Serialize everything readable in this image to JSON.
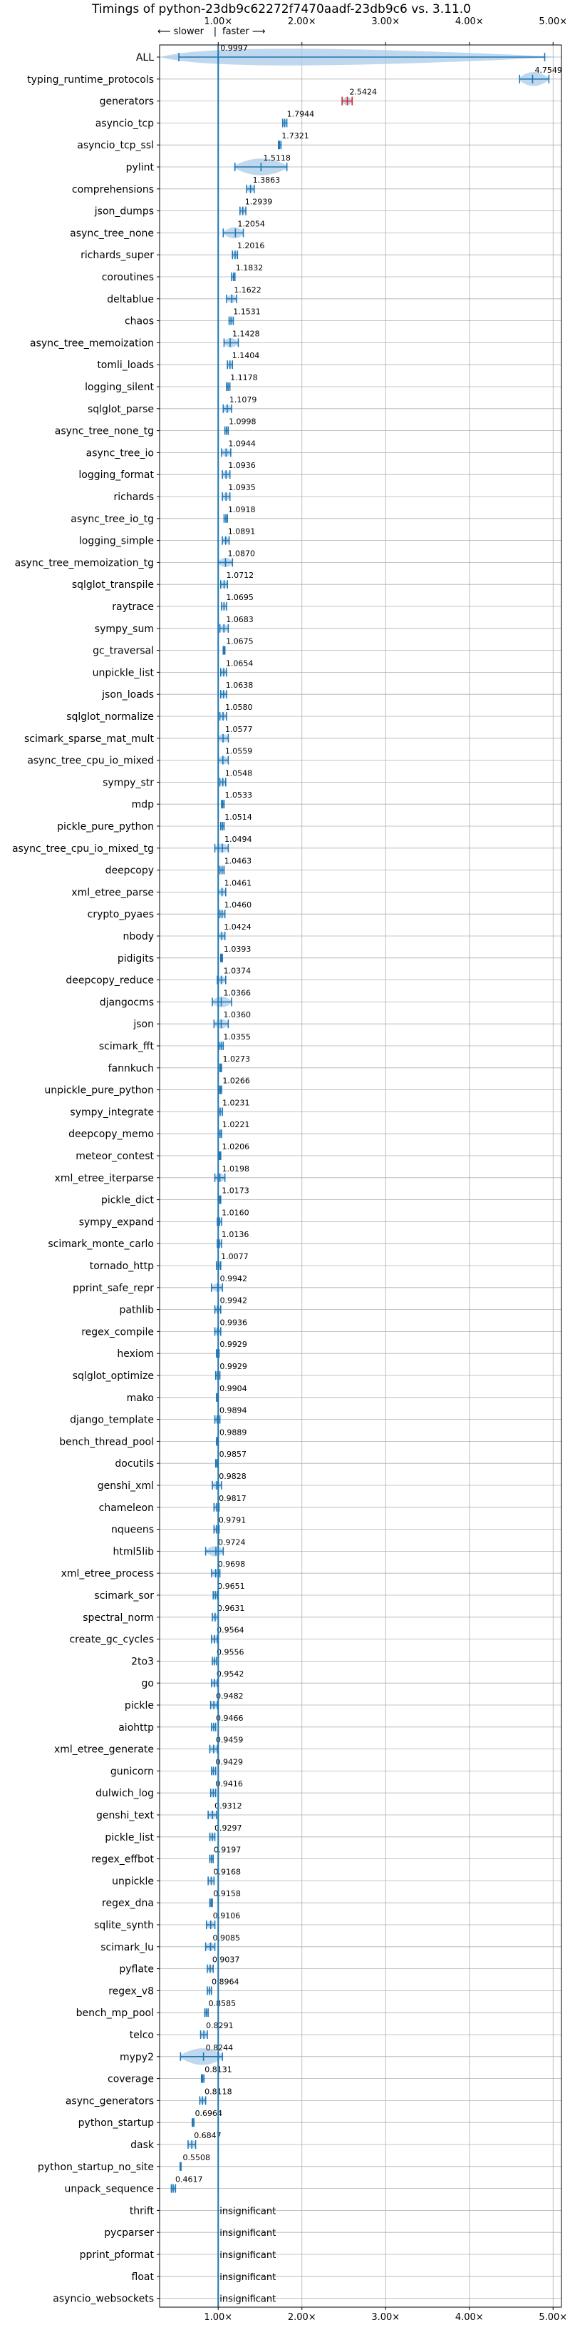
{
  "chart_data": {
    "type": "violin",
    "title": "Timings of python-23db9c62272f7470aadf-23db9c6 vs. 3.11.0",
    "direction_labels": {
      "slower": "⟵ slower",
      "separator": "|",
      "faster": "faster ⟶"
    },
    "xlim": [
      0.3,
      5.1
    ],
    "xticks": [
      1.0,
      2.0,
      3.0,
      4.0,
      5.0
    ],
    "xtick_labels": [
      "1.00×",
      "2.00×",
      "3.00×",
      "4.00×",
      "5.00×"
    ],
    "reference_line": 1.0,
    "grid": true,
    "colors": {
      "violin": "#a9cbe8",
      "line": "#1f77b4",
      "outlier": "#d62728",
      "grid": "#b0b0b0"
    },
    "insignificant_text": "insignificant",
    "rows": [
      {
        "name": "ALL",
        "value": 0.9997,
        "label": "0.9997",
        "lo": 0.53,
        "hi": 4.9,
        "spread": 0.25
      },
      {
        "name": "typing_runtime_protocols",
        "value": 4.7549,
        "label": "4.7549",
        "lo": 4.6,
        "hi": 4.95,
        "spread": 0.2
      },
      {
        "name": "generators",
        "value": 2.5424,
        "label": "2.5424",
        "lo": 2.48,
        "hi": 2.6,
        "spread": 0.06,
        "outlier": true
      },
      {
        "name": "asyncio_tcp",
        "value": 1.7944,
        "label": "1.7944",
        "lo": 1.77,
        "hi": 1.82,
        "spread": 0.03
      },
      {
        "name": "asyncio_tcp_ssl",
        "value": 1.7321,
        "label": "1.7321",
        "lo": 1.72,
        "hi": 1.75,
        "spread": 0.02
      },
      {
        "name": "pylint",
        "value": 1.5118,
        "label": "1.5118",
        "lo": 1.2,
        "hi": 1.82,
        "spread": 0.3
      },
      {
        "name": "comprehensions",
        "value": 1.3863,
        "label": "1.3863",
        "lo": 1.34,
        "hi": 1.43,
        "spread": 0.04
      },
      {
        "name": "json_dumps",
        "value": 1.2939,
        "label": "1.2939",
        "lo": 1.26,
        "hi": 1.33,
        "spread": 0.04
      },
      {
        "name": "async_tree_none",
        "value": 1.2054,
        "label": "1.2054",
        "lo": 1.06,
        "hi": 1.3,
        "spread": 0.1
      },
      {
        "name": "richards_super",
        "value": 1.2016,
        "label": "1.2016",
        "lo": 1.17,
        "hi": 1.23,
        "spread": 0.04
      },
      {
        "name": "coroutines",
        "value": 1.1832,
        "label": "1.1832",
        "lo": 1.16,
        "hi": 1.2,
        "spread": 0.03
      },
      {
        "name": "deltablue",
        "value": 1.1622,
        "label": "1.1622",
        "lo": 1.1,
        "hi": 1.22,
        "spread": 0.05
      },
      {
        "name": "chaos",
        "value": 1.1531,
        "label": "1.1531",
        "lo": 1.13,
        "hi": 1.18,
        "spread": 0.03
      },
      {
        "name": "async_tree_memoization",
        "value": 1.1428,
        "label": "1.1428",
        "lo": 1.07,
        "hi": 1.24,
        "spread": 0.07
      },
      {
        "name": "tomli_loads",
        "value": 1.1404,
        "label": "1.1404",
        "lo": 1.11,
        "hi": 1.17,
        "spread": 0.03
      },
      {
        "name": "logging_silent",
        "value": 1.1178,
        "label": "1.1178",
        "lo": 1.1,
        "hi": 1.14,
        "spread": 0.02
      },
      {
        "name": "sqlglot_parse",
        "value": 1.1079,
        "label": "1.1079",
        "lo": 1.06,
        "hi": 1.16,
        "spread": 0.05
      },
      {
        "name": "async_tree_none_tg",
        "value": 1.0998,
        "label": "1.0998",
        "lo": 1.08,
        "hi": 1.12,
        "spread": 0.02
      },
      {
        "name": "async_tree_io",
        "value": 1.0944,
        "label": "1.0944",
        "lo": 1.04,
        "hi": 1.15,
        "spread": 0.06
      },
      {
        "name": "logging_format",
        "value": 1.0936,
        "label": "1.0936",
        "lo": 1.05,
        "hi": 1.14,
        "spread": 0.05
      },
      {
        "name": "richards",
        "value": 1.0935,
        "label": "1.0935",
        "lo": 1.05,
        "hi": 1.14,
        "spread": 0.05
      },
      {
        "name": "async_tree_io_tg",
        "value": 1.0918,
        "label": "1.0918",
        "lo": 1.07,
        "hi": 1.11,
        "spread": 0.02
      },
      {
        "name": "logging_simple",
        "value": 1.0891,
        "label": "1.0891",
        "lo": 1.05,
        "hi": 1.13,
        "spread": 0.04
      },
      {
        "name": "async_tree_memoization_tg",
        "value": 1.087,
        "label": "1.0870",
        "lo": 1.0,
        "hi": 1.17,
        "spread": 0.08
      },
      {
        "name": "sqlglot_transpile",
        "value": 1.0712,
        "label": "1.0712",
        "lo": 1.03,
        "hi": 1.11,
        "spread": 0.04
      },
      {
        "name": "raytrace",
        "value": 1.0695,
        "label": "1.0695",
        "lo": 1.04,
        "hi": 1.1,
        "spread": 0.03
      },
      {
        "name": "sympy_sum",
        "value": 1.0683,
        "label": "1.0683",
        "lo": 1.02,
        "hi": 1.12,
        "spread": 0.05
      },
      {
        "name": "gc_traversal",
        "value": 1.0675,
        "label": "1.0675",
        "lo": 1.06,
        "hi": 1.08,
        "spread": 0.01
      },
      {
        "name": "unpickle_list",
        "value": 1.0654,
        "label": "1.0654",
        "lo": 1.03,
        "hi": 1.1,
        "spread": 0.04
      },
      {
        "name": "json_loads",
        "value": 1.0638,
        "label": "1.0638",
        "lo": 1.03,
        "hi": 1.1,
        "spread": 0.03
      },
      {
        "name": "sqlglot_normalize",
        "value": 1.058,
        "label": "1.0580",
        "lo": 1.02,
        "hi": 1.1,
        "spread": 0.04
      },
      {
        "name": "scimark_sparse_mat_mult",
        "value": 1.0577,
        "label": "1.0577",
        "lo": 1.0,
        "hi": 1.12,
        "spread": 0.04
      },
      {
        "name": "async_tree_cpu_io_mixed",
        "value": 1.0559,
        "label": "1.0559",
        "lo": 1.0,
        "hi": 1.12,
        "spread": 0.05
      },
      {
        "name": "sympy_str",
        "value": 1.0548,
        "label": "1.0548",
        "lo": 1.02,
        "hi": 1.09,
        "spread": 0.04
      },
      {
        "name": "mdp",
        "value": 1.0533,
        "label": "1.0533",
        "lo": 1.04,
        "hi": 1.07,
        "spread": 0.01
      },
      {
        "name": "pickle_pure_python",
        "value": 1.0514,
        "label": "1.0514",
        "lo": 1.03,
        "hi": 1.07,
        "spread": 0.02
      },
      {
        "name": "async_tree_cpu_io_mixed_tg",
        "value": 1.0494,
        "label": "1.0494",
        "lo": 0.96,
        "hi": 1.12,
        "spread": 0.07
      },
      {
        "name": "deepcopy",
        "value": 1.0463,
        "label": "1.0463",
        "lo": 1.02,
        "hi": 1.07,
        "spread": 0.03
      },
      {
        "name": "xml_etree_parse",
        "value": 1.0461,
        "label": "1.0461",
        "lo": 1.0,
        "hi": 1.09,
        "spread": 0.05
      },
      {
        "name": "crypto_pyaes",
        "value": 1.046,
        "label": "1.0460",
        "lo": 1.02,
        "hi": 1.08,
        "spread": 0.03
      },
      {
        "name": "nbody",
        "value": 1.0424,
        "label": "1.0424",
        "lo": 1.0,
        "hi": 1.08,
        "spread": 0.04
      },
      {
        "name": "pidigits",
        "value": 1.0393,
        "label": "1.0393",
        "lo": 1.03,
        "hi": 1.05,
        "spread": 0.01
      },
      {
        "name": "deepcopy_reduce",
        "value": 1.0374,
        "label": "1.0374",
        "lo": 0.99,
        "hi": 1.09,
        "spread": 0.05
      },
      {
        "name": "djangocms",
        "value": 1.0366,
        "label": "1.0366",
        "lo": 0.93,
        "hi": 1.16,
        "spread": 0.07
      },
      {
        "name": "json",
        "value": 1.036,
        "label": "1.0360",
        "lo": 0.95,
        "hi": 1.12,
        "spread": 0.07
      },
      {
        "name": "scimark_fft",
        "value": 1.0355,
        "label": "1.0355",
        "lo": 1.01,
        "hi": 1.06,
        "spread": 0.02
      },
      {
        "name": "fannkuch",
        "value": 1.0273,
        "label": "1.0273",
        "lo": 1.02,
        "hi": 1.04,
        "spread": 0.01
      },
      {
        "name": "unpickle_pure_python",
        "value": 1.0266,
        "label": "1.0266",
        "lo": 1.01,
        "hi": 1.04,
        "spread": 0.01
      },
      {
        "name": "sympy_integrate",
        "value": 1.0231,
        "label": "1.0231",
        "lo": 1.0,
        "hi": 1.05,
        "spread": 0.03
      },
      {
        "name": "deepcopy_memo",
        "value": 1.0221,
        "label": "1.0221",
        "lo": 1.0,
        "hi": 1.04,
        "spread": 0.02
      },
      {
        "name": "meteor_contest",
        "value": 1.0206,
        "label": "1.0206",
        "lo": 1.01,
        "hi": 1.03,
        "spread": 0.01
      },
      {
        "name": "xml_etree_iterparse",
        "value": 1.0198,
        "label": "1.0198",
        "lo": 0.96,
        "hi": 1.08,
        "spread": 0.06
      },
      {
        "name": "pickle_dict",
        "value": 1.0173,
        "label": "1.0173",
        "lo": 1.0,
        "hi": 1.03,
        "spread": 0.01
      },
      {
        "name": "sympy_expand",
        "value": 1.016,
        "label": "1.0160",
        "lo": 0.99,
        "hi": 1.04,
        "spread": 0.03
      },
      {
        "name": "scimark_monte_carlo",
        "value": 1.0136,
        "label": "1.0136",
        "lo": 0.99,
        "hi": 1.04,
        "spread": 0.02
      },
      {
        "name": "tornado_http",
        "value": 1.0077,
        "label": "1.0077",
        "lo": 0.98,
        "hi": 1.03,
        "spread": 0.02
      },
      {
        "name": "pprint_safe_repr",
        "value": 0.9942,
        "label": "0.9942",
        "lo": 0.92,
        "hi": 1.05,
        "spread": 0.06
      },
      {
        "name": "pathlib",
        "value": 0.9942,
        "label": "0.9942",
        "lo": 0.96,
        "hi": 1.03,
        "spread": 0.04
      },
      {
        "name": "regex_compile",
        "value": 0.9936,
        "label": "0.9936",
        "lo": 0.96,
        "hi": 1.03,
        "spread": 0.03
      },
      {
        "name": "hexiom",
        "value": 0.9929,
        "label": "0.9929",
        "lo": 0.98,
        "hi": 1.01,
        "spread": 0.01
      },
      {
        "name": "sqlglot_optimize",
        "value": 0.9929,
        "label": "0.9929",
        "lo": 0.97,
        "hi": 1.02,
        "spread": 0.02
      },
      {
        "name": "mako",
        "value": 0.9904,
        "label": "0.9904",
        "lo": 0.98,
        "hi": 1.0,
        "spread": 0.01
      },
      {
        "name": "django_template",
        "value": 0.9894,
        "label": "0.9894",
        "lo": 0.96,
        "hi": 1.02,
        "spread": 0.02
      },
      {
        "name": "bench_thread_pool",
        "value": 0.9889,
        "label": "0.9889",
        "lo": 0.98,
        "hi": 1.0,
        "spread": 0.01
      },
      {
        "name": "docutils",
        "value": 0.9857,
        "label": "0.9857",
        "lo": 0.97,
        "hi": 1.0,
        "spread": 0.01
      },
      {
        "name": "genshi_xml",
        "value": 0.9828,
        "label": "0.9828",
        "lo": 0.93,
        "hi": 1.04,
        "spread": 0.06
      },
      {
        "name": "chameleon",
        "value": 0.9817,
        "label": "0.9817",
        "lo": 0.95,
        "hi": 1.01,
        "spread": 0.03
      },
      {
        "name": "nqueens",
        "value": 0.9791,
        "label": "0.9791",
        "lo": 0.95,
        "hi": 1.01,
        "spread": 0.03
      },
      {
        "name": "html5lib",
        "value": 0.9724,
        "label": "0.9724",
        "lo": 0.85,
        "hi": 1.06,
        "spread": 0.07
      },
      {
        "name": "xml_etree_process",
        "value": 0.9698,
        "label": "0.9698",
        "lo": 0.92,
        "hi": 1.02,
        "spread": 0.05
      },
      {
        "name": "scimark_sor",
        "value": 0.9651,
        "label": "0.9651",
        "lo": 0.94,
        "hi": 0.99,
        "spread": 0.03
      },
      {
        "name": "spectral_norm",
        "value": 0.9631,
        "label": "0.9631",
        "lo": 0.93,
        "hi": 1.0,
        "spread": 0.03
      },
      {
        "name": "create_gc_cycles",
        "value": 0.9564,
        "label": "0.9564",
        "lo": 0.92,
        "hi": 0.99,
        "spread": 0.03
      },
      {
        "name": "2to3",
        "value": 0.9556,
        "label": "0.9556",
        "lo": 0.93,
        "hi": 0.98,
        "spread": 0.02
      },
      {
        "name": "go",
        "value": 0.9542,
        "label": "0.9542",
        "lo": 0.92,
        "hi": 0.99,
        "spread": 0.03
      },
      {
        "name": "pickle",
        "value": 0.9482,
        "label": "0.9482",
        "lo": 0.91,
        "hi": 0.99,
        "spread": 0.04
      },
      {
        "name": "aiohttp",
        "value": 0.9466,
        "label": "0.9466",
        "lo": 0.92,
        "hi": 0.97,
        "spread": 0.02
      },
      {
        "name": "xml_etree_generate",
        "value": 0.9459,
        "label": "0.9459",
        "lo": 0.9,
        "hi": 0.99,
        "spread": 0.05
      },
      {
        "name": "gunicorn",
        "value": 0.9429,
        "label": "0.9429",
        "lo": 0.92,
        "hi": 0.97,
        "spread": 0.02
      },
      {
        "name": "dulwich_log",
        "value": 0.9416,
        "label": "0.9416",
        "lo": 0.91,
        "hi": 0.97,
        "spread": 0.03
      },
      {
        "name": "genshi_text",
        "value": 0.9312,
        "label": "0.9312",
        "lo": 0.88,
        "hi": 0.98,
        "spread": 0.05
      },
      {
        "name": "pickle_list",
        "value": 0.9297,
        "label": "0.9297",
        "lo": 0.9,
        "hi": 0.96,
        "spread": 0.03
      },
      {
        "name": "regex_effbot",
        "value": 0.9197,
        "label": "0.9197",
        "lo": 0.9,
        "hi": 0.94,
        "spread": 0.02
      },
      {
        "name": "unpickle",
        "value": 0.9168,
        "label": "0.9168",
        "lo": 0.88,
        "hi": 0.95,
        "spread": 0.03
      },
      {
        "name": "regex_dna",
        "value": 0.9158,
        "label": "0.9158",
        "lo": 0.9,
        "hi": 0.93,
        "spread": 0.01
      },
      {
        "name": "sqlite_synth",
        "value": 0.9106,
        "label": "0.9106",
        "lo": 0.86,
        "hi": 0.96,
        "spread": 0.05
      },
      {
        "name": "scimark_lu",
        "value": 0.9085,
        "label": "0.9085",
        "lo": 0.85,
        "hi": 0.96,
        "spread": 0.05
      },
      {
        "name": "pyflate",
        "value": 0.9037,
        "label": "0.9037",
        "lo": 0.87,
        "hi": 0.94,
        "spread": 0.03
      },
      {
        "name": "regex_v8",
        "value": 0.8964,
        "label": "0.8964",
        "lo": 0.87,
        "hi": 0.92,
        "spread": 0.02
      },
      {
        "name": "bench_mp_pool",
        "value": 0.8585,
        "label": "0.8585",
        "lo": 0.84,
        "hi": 0.88,
        "spread": 0.02
      },
      {
        "name": "telco",
        "value": 0.8291,
        "label": "0.8291",
        "lo": 0.79,
        "hi": 0.87,
        "spread": 0.04
      },
      {
        "name": "mypy2",
        "value": 0.8244,
        "label": "0.8244",
        "lo": 0.55,
        "hi": 1.05,
        "spread": 0.18
      },
      {
        "name": "coverage",
        "value": 0.8131,
        "label": "0.8131",
        "lo": 0.8,
        "hi": 0.83,
        "spread": 0.01
      },
      {
        "name": "async_generators",
        "value": 0.8118,
        "label": "0.8118",
        "lo": 0.78,
        "hi": 0.85,
        "spread": 0.03
      },
      {
        "name": "python_startup",
        "value": 0.6964,
        "label": "0.6964",
        "lo": 0.69,
        "hi": 0.71,
        "spread": 0.01
      },
      {
        "name": "dask",
        "value": 0.6847,
        "label": "0.6847",
        "lo": 0.64,
        "hi": 0.73,
        "spread": 0.04
      },
      {
        "name": "python_startup_no_site",
        "value": 0.5508,
        "label": "0.5508",
        "lo": 0.545,
        "hi": 0.556,
        "spread": 0.005
      },
      {
        "name": "unpack_sequence",
        "value": 0.4617,
        "label": "0.4617",
        "lo": 0.44,
        "hi": 0.49,
        "spread": 0.02
      },
      {
        "name": "thrift",
        "insignificant": true
      },
      {
        "name": "pycparser",
        "insignificant": true
      },
      {
        "name": "pprint_pformat",
        "insignificant": true
      },
      {
        "name": "float",
        "insignificant": true
      },
      {
        "name": "asyncio_websockets",
        "insignificant": true
      }
    ]
  }
}
